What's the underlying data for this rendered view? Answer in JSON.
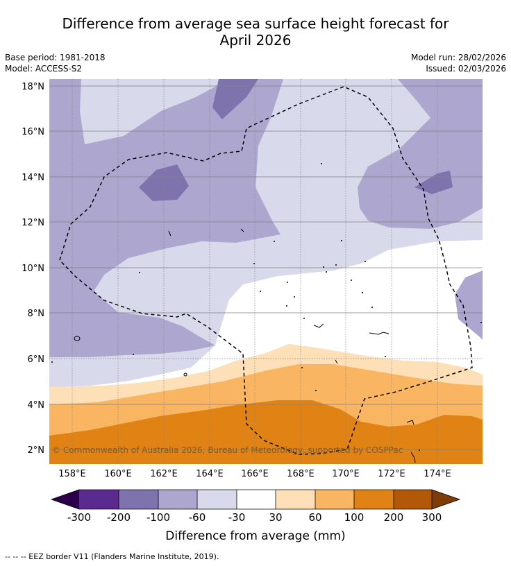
{
  "header": {
    "title_line1": "Difference from average sea surface height forecast for",
    "title_line2": "April 2026",
    "base_period": "Base period: 1981-2018",
    "model": "Model: ACCESS-S2",
    "model_run": "Model run: 28/02/2026",
    "issued": "Issued: 02/03/2026"
  },
  "map": {
    "lat_labels": [
      "2°N",
      "4°N",
      "6°N",
      "8°N",
      "10°N",
      "12°N",
      "14°N",
      "16°N",
      "18°N"
    ],
    "lon_labels": [
      "158°E",
      "160°E",
      "162°E",
      "164°E",
      "166°E",
      "168°E",
      "170°E",
      "172°E",
      "174°E"
    ],
    "copyright": "© Commonwealth of Australia 2026, Bureau of Meteorology, supported by COSPPac",
    "colors": {
      "c_-300_-200": "#5b2a91",
      "c_-200_-100": "#7f73ae",
      "c_-100_-60": "#ada7d0",
      "c_-60_-30": "#d9d9ec",
      "c_-30_30": "#ffffff",
      "c_30_60": "#fde0b7",
      "c_60_100": "#f9b562",
      "c_100_200": "#e08214",
      "c_200_300": "#b35806",
      "under": "#2d004b",
      "over": "#7f3b08"
    }
  },
  "colorbar": {
    "ticks": [
      "-300",
      "-200",
      "-100",
      "-60",
      "-30",
      "30",
      "60",
      "100",
      "200",
      "300"
    ],
    "label": "Difference from average (mm)"
  },
  "footer": {
    "legend_text": "--  --  -- EEZ border V11 (Flanders Marine Institute, 2019)."
  }
}
